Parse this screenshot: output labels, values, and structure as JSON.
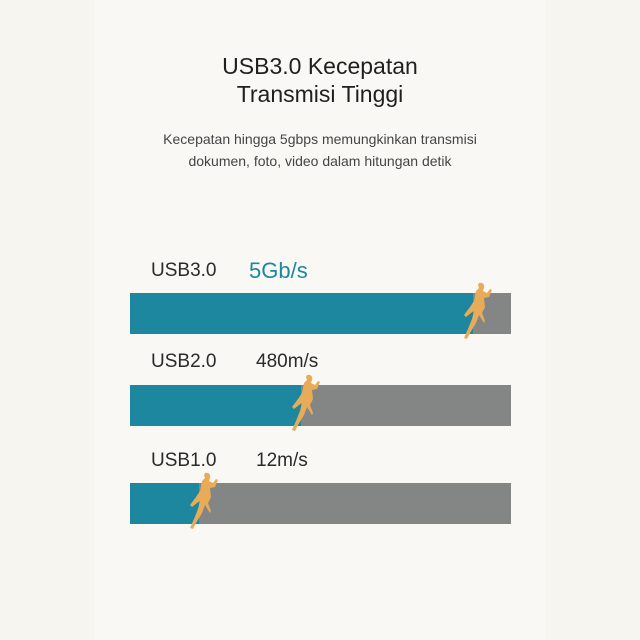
{
  "title_line1": "USB3.0 Kecepatan",
  "title_line2": "Transmisi Tinggi",
  "subtitle_line1": "Kecepatan hingga 5gbps memungkinkan transmisi",
  "subtitle_line2": "dokumen, foto, video dalam hitungan detik",
  "colors": {
    "fill": "#1e87a0",
    "track": "#848685",
    "runner": "#e8ac58",
    "highlight_text": "#1e87a0"
  },
  "chart_data": {
    "type": "bar",
    "orientation": "horizontal",
    "categories": [
      "USB3.0",
      "USB2.0",
      "USB1.0"
    ],
    "value_labels": [
      "5Gb/s",
      "480m/s",
      "12m/s"
    ],
    "fill_fraction": [
      0.9,
      0.45,
      0.18
    ],
    "icon": "runner-icon"
  }
}
